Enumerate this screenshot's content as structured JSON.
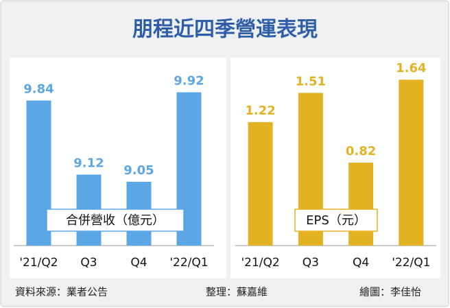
{
  "title": "朋程近四季營運表現",
  "footer": {
    "source": "資料來源：業者公告",
    "editor": "整理：蘇嘉維",
    "artist": "繪圖：李佳怡"
  },
  "chart_data": [
    {
      "type": "bar",
      "categories": [
        "'21/Q2",
        "Q3",
        "Q4",
        "'22/Q1"
      ],
      "series": [
        {
          "name": "合併營收（億元）",
          "color": "#5ba6e4",
          "values": [
            9.84,
            9.12,
            9.05,
            9.92
          ]
        }
      ],
      "ylim": [
        8.43,
        10.15
      ]
    },
    {
      "type": "bar",
      "categories": [
        "'21/Q2",
        "Q3",
        "Q4",
        "'22/Q1"
      ],
      "series": [
        {
          "name": "EPS（元）",
          "color": "#e3b223",
          "values": [
            1.22,
            1.51,
            0.82,
            1.64
          ]
        }
      ],
      "ylim": [
        0,
        1.75
      ]
    }
  ]
}
